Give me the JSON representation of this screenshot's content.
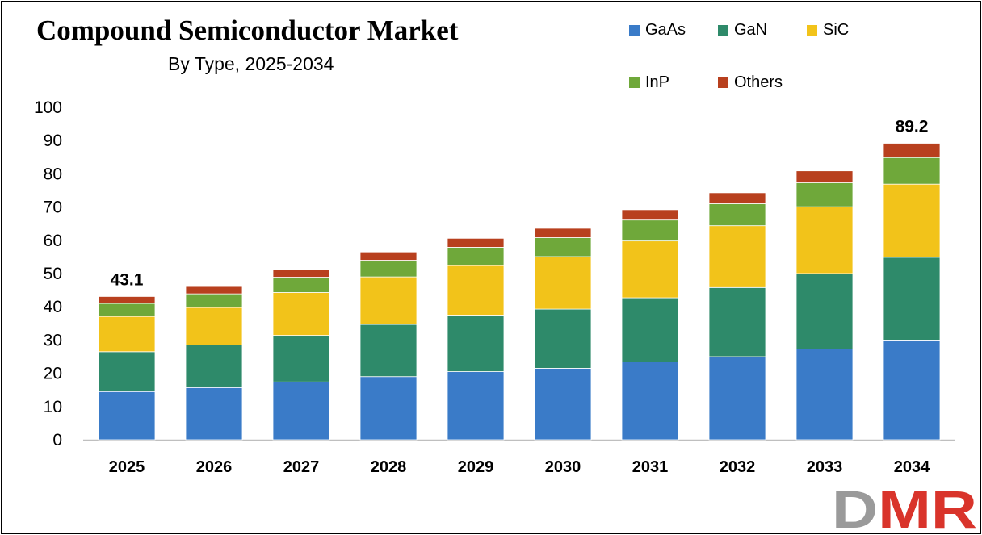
{
  "chart_data": {
    "type": "bar",
    "stacked": true,
    "title": "Compound Semiconductor Market",
    "subtitle": "By Type, 2025-2034",
    "categories": [
      "2025",
      "2026",
      "2027",
      "2028",
      "2029",
      "2030",
      "2031",
      "2032",
      "2033",
      "2034"
    ],
    "series": [
      {
        "name": "GaAs",
        "color": "#3a7bc8",
        "values": [
          14.5,
          15.7,
          17.4,
          19.0,
          20.5,
          21.5,
          23.4,
          25.0,
          27.3,
          30.0
        ]
      },
      {
        "name": "GaN",
        "color": "#2e8a6a",
        "values": [
          12.0,
          12.8,
          14.0,
          15.7,
          17.0,
          17.8,
          19.3,
          20.8,
          22.7,
          24.9
        ]
      },
      {
        "name": "SiC",
        "color": "#f2c31a",
        "values": [
          10.6,
          11.3,
          12.9,
          14.3,
          14.9,
          15.8,
          17.1,
          18.6,
          20.1,
          22.0
        ]
      },
      {
        "name": "InP",
        "color": "#6fa83a",
        "values": [
          3.9,
          4.1,
          4.6,
          5.0,
          5.5,
          5.7,
          6.3,
          6.6,
          7.2,
          8.0
        ]
      },
      {
        "name": "Others",
        "color": "#b8401e",
        "values": [
          2.1,
          2.2,
          2.4,
          2.5,
          2.7,
          2.8,
          3.1,
          3.3,
          3.6,
          4.3
        ]
      }
    ],
    "totals_labels": {
      "2025": "43.1",
      "2034": "89.2"
    },
    "ylim": [
      0,
      100
    ],
    "yticks": [
      0,
      10,
      20,
      30,
      40,
      50,
      60,
      70,
      80,
      90,
      100
    ],
    "xlabel": "",
    "ylabel": "",
    "grid": false,
    "legend": "top-right"
  },
  "brand": {
    "logo_text": "DMR",
    "logo_color_d": "#9a9a9a",
    "logo_color_mr": "#d9342b"
  }
}
